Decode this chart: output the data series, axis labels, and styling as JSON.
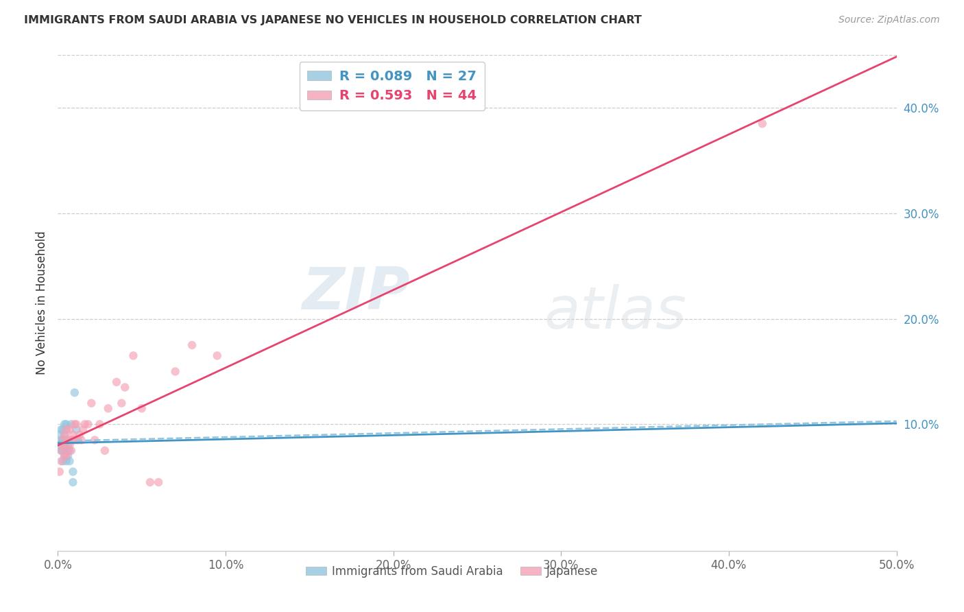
{
  "title": "IMMIGRANTS FROM SAUDI ARABIA VS JAPANESE NO VEHICLES IN HOUSEHOLD CORRELATION CHART",
  "source": "Source: ZipAtlas.com",
  "ylabel": "No Vehicles in Household",
  "xlim": [
    0.0,
    0.5
  ],
  "ylim": [
    -0.02,
    0.45
  ],
  "xticks": [
    0.0,
    0.1,
    0.2,
    0.3,
    0.4,
    0.5
  ],
  "yticks_right": [
    0.1,
    0.2,
    0.3,
    0.4
  ],
  "ytick_labels_right": [
    "10.0%",
    "20.0%",
    "30.0%",
    "40.0%"
  ],
  "xtick_labels": [
    "0.0%",
    "10.0%",
    "20.0%",
    "30.0%",
    "40.0%",
    "50.0%"
  ],
  "legend_r1": "R = 0.089",
  "legend_n1": "N = 27",
  "legend_r2": "R = 0.593",
  "legend_n2": "N = 44",
  "color_blue": "#92c5de",
  "color_pink": "#f4a0b5",
  "color_line_blue": "#4393c3",
  "color_line_pink": "#e8436e",
  "color_trendline_dashed": "#92c5de",
  "watermark_zip": "ZIP",
  "watermark_atlas": "atlas",
  "saudi_x": [
    0.001,
    0.001,
    0.002,
    0.002,
    0.002,
    0.003,
    0.003,
    0.003,
    0.003,
    0.004,
    0.004,
    0.004,
    0.004,
    0.005,
    0.005,
    0.005,
    0.005,
    0.005,
    0.006,
    0.006,
    0.007,
    0.007,
    0.008,
    0.009,
    0.009,
    0.01,
    0.011
  ],
  "saudi_y": [
    0.08,
    0.09,
    0.075,
    0.085,
    0.095,
    0.065,
    0.075,
    0.085,
    0.095,
    0.07,
    0.08,
    0.09,
    0.1,
    0.065,
    0.075,
    0.085,
    0.095,
    0.1,
    0.07,
    0.08,
    0.065,
    0.075,
    0.1,
    0.045,
    0.055,
    0.13,
    0.095
  ],
  "japanese_x": [
    0.001,
    0.002,
    0.002,
    0.003,
    0.003,
    0.004,
    0.004,
    0.004,
    0.005,
    0.005,
    0.005,
    0.006,
    0.006,
    0.007,
    0.007,
    0.008,
    0.008,
    0.009,
    0.009,
    0.01,
    0.01,
    0.011,
    0.012,
    0.013,
    0.014,
    0.015,
    0.016,
    0.018,
    0.02,
    0.022,
    0.025,
    0.028,
    0.03,
    0.035,
    0.038,
    0.04,
    0.045,
    0.05,
    0.055,
    0.06,
    0.07,
    0.08,
    0.095,
    0.42
  ],
  "japanese_y": [
    0.055,
    0.075,
    0.065,
    0.08,
    0.085,
    0.09,
    0.07,
    0.08,
    0.085,
    0.095,
    0.07,
    0.085,
    0.075,
    0.08,
    0.095,
    0.085,
    0.075,
    0.09,
    0.085,
    0.1,
    0.085,
    0.1,
    0.085,
    0.09,
    0.085,
    0.095,
    0.1,
    0.1,
    0.12,
    0.085,
    0.1,
    0.075,
    0.115,
    0.14,
    0.12,
    0.135,
    0.165,
    0.115,
    0.045,
    0.045,
    0.15,
    0.175,
    0.165,
    0.385
  ]
}
